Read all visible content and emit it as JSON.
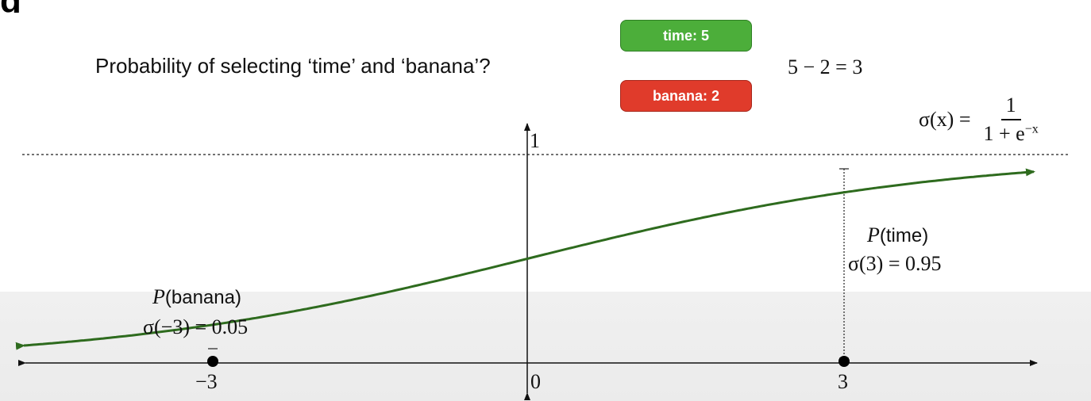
{
  "question": "Probability of selecting ‘time’ and ‘banana’?",
  "pills": {
    "time": "time: 5",
    "banana": "banana: 2"
  },
  "equation": "5 − 2 = 3",
  "formula": {
    "lhs": "σ(x) =",
    "numerator": "1",
    "denominator": "1 + e",
    "exponent": "−x"
  },
  "annotations": {
    "time_prob": "P(time)",
    "time_value": "σ(3) = 0.95",
    "banana_prob": "P(banana)",
    "banana_value": "σ(−3) = 0.05"
  },
  "axis": {
    "x_ticks": [
      "−3",
      "0",
      "3"
    ],
    "y_top_label": "1"
  },
  "colors": {
    "curve": "#2e6b1e",
    "time_pill": "#4cae3a",
    "banana_pill": "#e03b2b"
  }
}
